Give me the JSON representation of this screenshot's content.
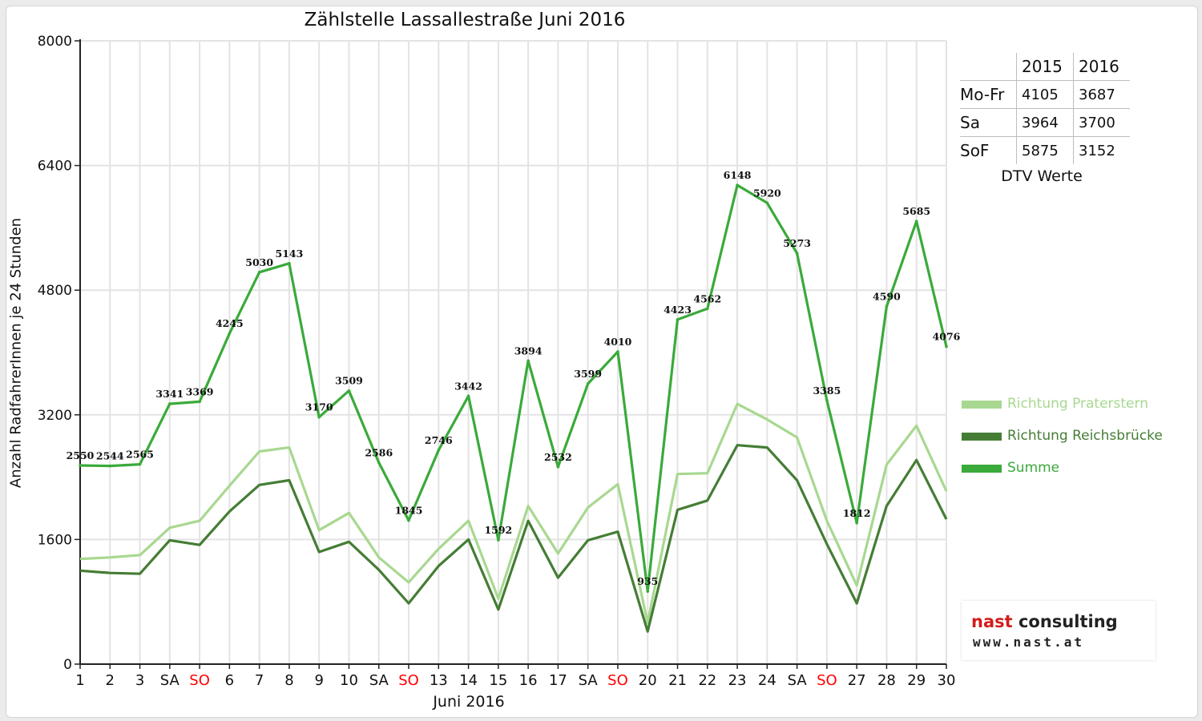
{
  "chart_data": {
    "type": "line",
    "title": "Zählstelle Lassallestraße Juni 2016",
    "xlabel": "Juni 2016",
    "ylabel": "Anzahl RadfahrerInnen je 24 Stunden",
    "ylim": [
      0,
      8000
    ],
    "yticks": [
      "0",
      "1600",
      "3200",
      "4800",
      "6400",
      "8000"
    ],
    "grid": true,
    "legend_position": "right",
    "categories": [
      "1",
      "2",
      "3",
      "SA",
      "SO",
      "6",
      "7",
      "8",
      "9",
      "10",
      "SA",
      "SO",
      "13",
      "14",
      "15",
      "16",
      "17",
      "SA",
      "SO",
      "20",
      "21",
      "22",
      "23",
      "24",
      "SA",
      "SO",
      "27",
      "28",
      "29",
      "30"
    ],
    "weekend_color": "#ff0000",
    "series": [
      {
        "name": "Richtung Praterstern",
        "color": "#a8d890",
        "values": [
          1350,
          1370,
          1400,
          1750,
          1840,
          2290,
          2730,
          2780,
          1720,
          1940,
          1370,
          1050,
          1480,
          1840,
          840,
          2030,
          1420,
          2010,
          2310,
          530,
          2440,
          2450,
          3340,
          3140,
          2910,
          1840,
          1010,
          2560,
          3060,
          2220
        ]
      },
      {
        "name": "Richtung Reichsbrücke",
        "color": "#457d35",
        "values": [
          1200,
          1170,
          1160,
          1590,
          1530,
          1960,
          2300,
          2360,
          1440,
          1570,
          1210,
          780,
          1260,
          1600,
          700,
          1840,
          1110,
          1590,
          1700,
          420,
          1980,
          2100,
          2810,
          2780,
          2360,
          1540,
          780,
          2030,
          2620,
          1860
        ]
      },
      {
        "name": "Summe",
        "color": "#3aaa3a",
        "values": [
          2550,
          2544,
          2565,
          3341,
          3369,
          4245,
          5030,
          5143,
          3170,
          3509,
          2586,
          1845,
          2746,
          3442,
          1592,
          3894,
          2532,
          3599,
          4010,
          935,
          4423,
          4562,
          6148,
          5920,
          5273,
          3385,
          1812,
          4590,
          5685,
          4076
        ],
        "data_labels": [
          "2550",
          "2544",
          "2565",
          "3341",
          "3369",
          "4245",
          "5030",
          "5143",
          "3170",
          "3509",
          "2586",
          "1845",
          "2746",
          "3442",
          "1592",
          "3894",
          "2532",
          "3599",
          "4010",
          "935",
          "4423",
          "4562",
          "6148",
          "5920",
          "5273",
          "3385",
          "1812",
          "4590",
          "5685",
          "4076"
        ]
      }
    ]
  },
  "dtv_table": {
    "headers": [
      "",
      "2015",
      "2016"
    ],
    "rows": [
      {
        "label": "Mo-Fr",
        "v2015": "4105",
        "v2016": "3687"
      },
      {
        "label": "Sa",
        "v2015": "3964",
        "v2016": "3700"
      },
      {
        "label": "SoF",
        "v2015": "5875",
        "v2016": "3152"
      }
    ],
    "caption": "DTV Werte"
  },
  "logo": {
    "brand": "nast",
    "brand_rest": " consulting",
    "url": "www.nast.at"
  }
}
